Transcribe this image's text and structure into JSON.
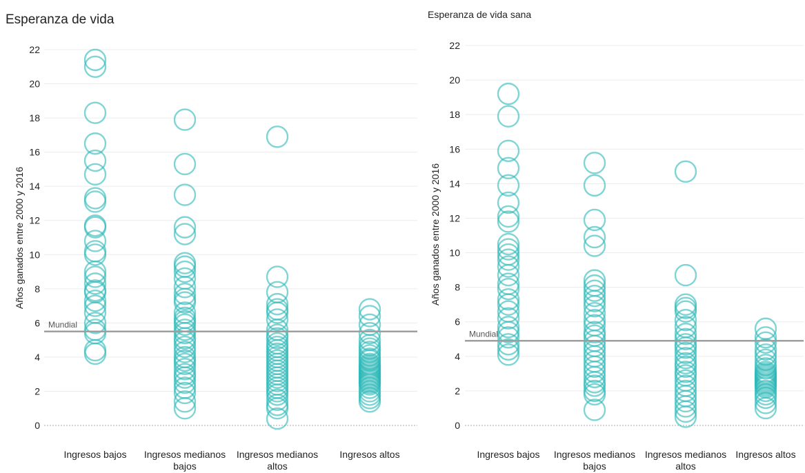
{
  "colors": {
    "point": "#2bb7b7",
    "grid": "#ececec",
    "reference": "#9e9e9e",
    "zero": "#a8a8a8"
  },
  "chart_data": [
    {
      "type": "scatter",
      "title": "Esperanza de vida",
      "ylabel": "Años ganados entre 2000 y 2016",
      "ylim": [
        0,
        22
      ],
      "yticks": [
        0,
        2,
        4,
        6,
        8,
        10,
        12,
        14,
        16,
        18,
        20,
        22
      ],
      "grid": true,
      "categories": [
        "Ingresos bajos",
        "Ingresos medianos bajos",
        "Ingresos medianos altos",
        "Ingresos altos"
      ],
      "reference": {
        "label": "Mundial",
        "value": 5.5
      },
      "points": [
        [
          21.4,
          21.0,
          18.3,
          16.5,
          15.5,
          14.7,
          13.3,
          13.1,
          11.7,
          11.6,
          10.8,
          10.2,
          10.0,
          9.0,
          8.7,
          8.3,
          7.9,
          7.8,
          7.3,
          7.0,
          6.6,
          6.0,
          5.6,
          5.4,
          4.4,
          4.2
        ],
        [
          17.9,
          15.3,
          13.5,
          11.6,
          11.2,
          9.5,
          9.3,
          9.0,
          8.6,
          8.1,
          7.7,
          7.4,
          7.2,
          6.6,
          6.3,
          6.1,
          5.9,
          5.6,
          5.4,
          5.1,
          4.9,
          4.6,
          4.3,
          4.0,
          3.8,
          3.6,
          3.3,
          3.0,
          2.8,
          2.5,
          2.2,
          1.9,
          1.4,
          1.0
        ],
        [
          16.9,
          8.7,
          7.8,
          7.1,
          6.8,
          6.6,
          6.2,
          5.6,
          5.3,
          5.1,
          4.8,
          4.6,
          4.4,
          4.2,
          4.0,
          3.8,
          3.6,
          3.4,
          3.2,
          3.0,
          2.8,
          2.6,
          2.4,
          2.2,
          2.0,
          1.8,
          1.5,
          1.2,
          1.0,
          0.4
        ],
        [
          6.8,
          6.4,
          5.9,
          5.4,
          5.0,
          4.7,
          4.5,
          4.3,
          4.1,
          3.9,
          3.8,
          3.6,
          3.5,
          3.4,
          3.3,
          3.2,
          3.1,
          3.0,
          2.9,
          2.8,
          2.7,
          2.6,
          2.5,
          2.4,
          2.2,
          2.0,
          1.8,
          1.6,
          1.4
        ]
      ]
    },
    {
      "type": "scatter",
      "title": "Esperanza de vida sana",
      "ylabel": "Años ganados entre 2000 y 2016",
      "ylim": [
        0,
        22
      ],
      "yticks": [
        0,
        2,
        4,
        6,
        8,
        10,
        12,
        14,
        16,
        18,
        20,
        22
      ],
      "grid": true,
      "categories": [
        "Ingresos bajos",
        "Ingresos medianos bajos",
        "Ingresos medianos altos",
        "Ingresos altos"
      ],
      "reference": {
        "label": "Mundial",
        "value": 4.9
      },
      "points": [
        [
          19.2,
          17.9,
          15.9,
          14.9,
          13.9,
          12.9,
          12.1,
          11.8,
          10.5,
          10.2,
          9.9,
          9.6,
          9.2,
          8.7,
          8.2,
          7.9,
          7.3,
          7.0,
          6.6,
          6.2,
          5.7,
          5.4,
          5.1,
          4.7,
          4.4,
          4.1
        ],
        [
          15.2,
          13.9,
          11.9,
          10.9,
          10.4,
          8.4,
          8.1,
          7.8,
          7.5,
          7.2,
          6.9,
          6.5,
          6.1,
          5.8,
          5.4,
          5.2,
          4.9,
          4.6,
          4.3,
          4.0,
          3.7,
          3.4,
          3.1,
          2.8,
          2.5,
          2.3,
          2.0,
          1.8,
          0.9
        ],
        [
          14.7,
          8.7,
          7.0,
          6.8,
          6.6,
          6.1,
          5.7,
          5.3,
          5.0,
          4.7,
          4.5,
          4.2,
          3.9,
          3.6,
          3.4,
          3.1,
          2.9,
          2.6,
          2.3,
          2.0,
          1.7,
          1.4,
          1.1,
          0.8,
          0.5
        ],
        [
          5.6,
          5.1,
          4.8,
          4.4,
          4.1,
          3.8,
          3.5,
          3.3,
          3.1,
          3.0,
          2.9,
          2.8,
          2.7,
          2.6,
          2.5,
          2.4,
          2.3,
          2.2,
          2.0,
          1.8,
          1.6,
          1.3,
          1.0
        ]
      ]
    }
  ]
}
